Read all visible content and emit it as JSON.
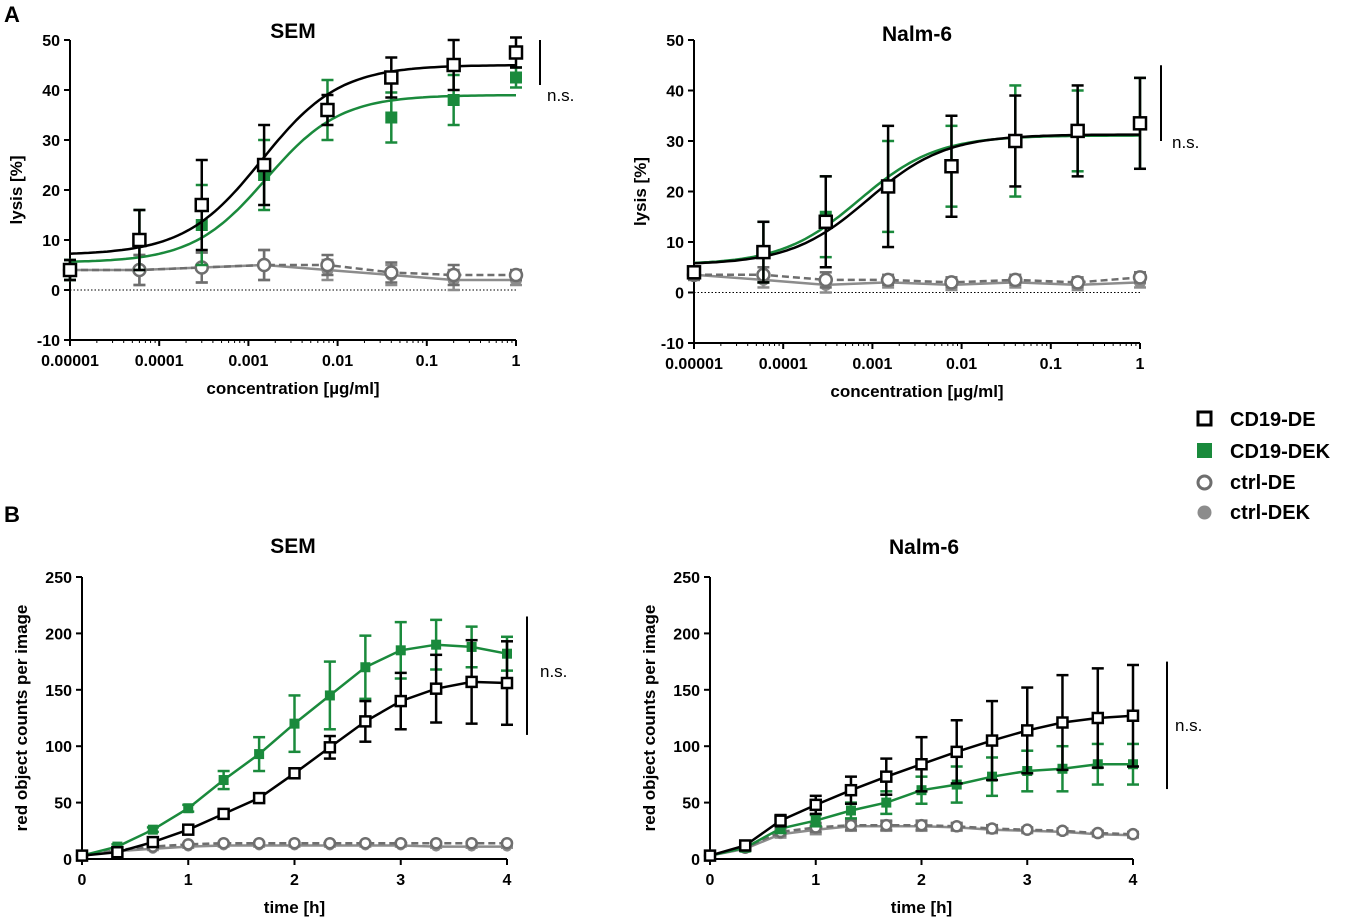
{
  "panel_labels": [
    "A",
    "B"
  ],
  "legend": [
    {
      "label": "CD19-DE",
      "marker": "open-square",
      "color": "#000000"
    },
    {
      "label": "CD19-DEK",
      "marker": "filled-square",
      "color": "#1a8a3c"
    },
    {
      "label": "ctrl-DE",
      "marker": "open-circle",
      "color": "#6e6e6e"
    },
    {
      "label": "ctrl-DEK",
      "marker": "filled-circle",
      "color": "#8c8c8c"
    }
  ],
  "colors": {
    "black": "#000000",
    "green": "#1a8a3c",
    "gray": "#6e6e6e",
    "lightgray": "#8c8c8c"
  },
  "chart_data": [
    {
      "id": "A1",
      "type": "scatter",
      "title": "SEM",
      "xlabel": "concentration [µg/ml]",
      "ylabel": "lysis [%]",
      "xscale": "log",
      "xlim": [
        1e-05,
        1
      ],
      "ylim": [
        -10,
        50
      ],
      "xticks": [
        1e-05,
        0.0001,
        0.001,
        0.01,
        0.1,
        1
      ],
      "xticklabels": [
        "0.00001",
        "0.0001",
        "0.001",
        "0.01",
        "0.1",
        "1"
      ],
      "yticks": [
        -10,
        0,
        10,
        20,
        30,
        40,
        50
      ],
      "annotation": "n.s.",
      "x": [
        1e-05,
        6e-05,
        0.0003,
        0.0015,
        0.0077,
        0.04,
        0.2,
        1
      ],
      "series": [
        {
          "name": "CD19-DE",
          "y": [
            4,
            10,
            17,
            25,
            36,
            42.5,
            45,
            47.5
          ],
          "err": [
            2,
            6,
            9,
            8,
            3,
            4,
            5,
            3
          ],
          "fit": {
            "bottom": 7,
            "top": 45,
            "logEC50": -2.85,
            "hill": 1
          }
        },
        {
          "name": "CD19-DEK",
          "y": [
            4,
            10,
            13,
            23,
            36,
            34.5,
            38,
            42.5
          ],
          "err": [
            2,
            6,
            8,
            7,
            6,
            5,
            5,
            2
          ],
          "fit": {
            "bottom": 5.5,
            "top": 39,
            "logEC50": -2.8,
            "hill": 1.05
          }
        },
        {
          "name": "ctrl-DE",
          "y": [
            4,
            4,
            4.5,
            5,
            5,
            3.5,
            3,
            3
          ],
          "err": [
            2,
            3,
            3,
            3,
            2,
            2,
            2,
            1
          ]
        },
        {
          "name": "ctrl-DEK",
          "y": [
            4,
            4,
            4.5,
            5,
            4,
            3,
            2,
            2
          ],
          "err": [
            2,
            3,
            3,
            3,
            2,
            2,
            2,
            1
          ]
        }
      ]
    },
    {
      "id": "A2",
      "type": "scatter",
      "title": "Nalm-6",
      "xlabel": "concentration [µg/ml]",
      "ylabel": "lysis [%]",
      "xscale": "log",
      "xlim": [
        1e-05,
        1
      ],
      "ylim": [
        -10,
        50
      ],
      "xticks": [
        1e-05,
        0.0001,
        0.001,
        0.01,
        0.1,
        1
      ],
      "xticklabels": [
        "0.00001",
        "0.0001",
        "0.001",
        "0.01",
        "0.1",
        "1"
      ],
      "yticks": [
        -10,
        0,
        10,
        20,
        30,
        40,
        50
      ],
      "annotation": "n.s.",
      "x": [
        1e-05,
        6e-05,
        0.0003,
        0.0015,
        0.0077,
        0.04,
        0.2,
        1
      ],
      "series": [
        {
          "name": "CD19-DE",
          "y": [
            4,
            8,
            14,
            21,
            25,
            30,
            32,
            33.5
          ],
          "err": [
            1,
            6,
            9,
            12,
            10,
            9,
            9,
            9
          ],
          "fit": {
            "bottom": 5.5,
            "top": 31.3,
            "logEC50": -3.05,
            "hill": 1
          }
        },
        {
          "name": "CD19-DEK",
          "y": [
            4,
            8,
            15,
            21,
            25,
            30,
            32,
            33.5
          ],
          "err": [
            1,
            6,
            8,
            9,
            8,
            11,
            8,
            9
          ],
          "fit": {
            "bottom": 5.5,
            "top": 31.1,
            "logEC50": -3.15,
            "hill": 1
          }
        },
        {
          "name": "ctrl-DE",
          "y": [
            3.5,
            3.5,
            2.5,
            2.5,
            2,
            2.5,
            2,
            3
          ],
          "err": [
            1,
            1.5,
            1.5,
            1,
            1,
            1,
            1,
            1
          ]
        },
        {
          "name": "ctrl-DEK",
          "y": [
            3.5,
            2.5,
            1.5,
            2,
            1.5,
            2,
            1.5,
            2
          ],
          "err": [
            1,
            1.5,
            1.5,
            1,
            1,
            1,
            1,
            1
          ]
        }
      ]
    },
    {
      "id": "B1",
      "type": "line",
      "title": "SEM",
      "xlabel": "time [h]",
      "ylabel": "red object counts per image",
      "xlim": [
        0,
        4
      ],
      "ylim": [
        0,
        250
      ],
      "xticks": [
        0,
        1,
        2,
        3,
        4
      ],
      "yticks": [
        0,
        50,
        100,
        150,
        200,
        250
      ],
      "annotation": "n.s.",
      "x": [
        0,
        0.333,
        0.667,
        1,
        1.333,
        1.667,
        2,
        2.333,
        2.667,
        3,
        3.333,
        3.667,
        4
      ],
      "series": [
        {
          "name": "CD19-DE",
          "y": [
            3,
            6,
            15,
            26,
            40,
            54,
            76,
            99,
            122,
            140,
            151,
            157,
            156
          ],
          "err": [
            1,
            2,
            2,
            2,
            3,
            3,
            4,
            10,
            18,
            25,
            30,
            37,
            37
          ]
        },
        {
          "name": "CD19-DEK",
          "y": [
            3,
            11,
            26,
            45,
            70,
            93,
            120,
            145,
            170,
            185,
            190,
            188,
            182
          ],
          "err": [
            1,
            2,
            2,
            3,
            8,
            15,
            25,
            30,
            28,
            25,
            22,
            18,
            15
          ]
        },
        {
          "name": "ctrl-DE",
          "y": [
            3,
            8,
            11,
            13,
            14,
            14,
            14,
            14,
            14,
            14,
            14,
            14,
            14
          ],
          "err": [
            1,
            1,
            1,
            1,
            1,
            1,
            1,
            1,
            1,
            1,
            1,
            1,
            1
          ]
        },
        {
          "name": "ctrl-DEK",
          "y": [
            3,
            7,
            9,
            11,
            12,
            12,
            12,
            12,
            12,
            12,
            11,
            11,
            11
          ],
          "err": [
            1,
            1,
            1,
            1,
            1,
            1,
            1,
            1,
            1,
            1,
            1,
            1,
            1
          ]
        }
      ]
    },
    {
      "id": "B2",
      "type": "line",
      "title": "Nalm-6",
      "xlabel": "time [h]",
      "ylabel": "red object counts per image",
      "xlim": [
        0,
        4
      ],
      "ylim": [
        0,
        250
      ],
      "xticks": [
        0,
        1,
        2,
        3,
        4
      ],
      "yticks": [
        0,
        50,
        100,
        150,
        200,
        250
      ],
      "annotation": "n.s.",
      "x": [
        0,
        0.333,
        0.667,
        1,
        1.333,
        1.667,
        2,
        2.333,
        2.667,
        3,
        3.333,
        3.667,
        4
      ],
      "series": [
        {
          "name": "CD19-DE",
          "y": [
            3,
            12,
            34,
            48,
            61,
            73,
            84,
            95,
            105,
            114,
            121,
            125,
            127
          ],
          "err": [
            2,
            3,
            5,
            8,
            12,
            16,
            24,
            28,
            35,
            38,
            42,
            44,
            45
          ]
        },
        {
          "name": "CD19-DEK",
          "y": [
            3,
            10,
            27,
            34,
            43,
            50,
            61,
            66,
            73,
            78,
            80,
            84,
            84
          ],
          "err": [
            1,
            3,
            4,
            5,
            7,
            10,
            12,
            16,
            17,
            18,
            20,
            18,
            18
          ]
        },
        {
          "name": "ctrl-DE",
          "y": [
            3,
            10,
            24,
            28,
            30,
            30,
            30,
            29,
            27,
            26,
            25,
            23,
            22
          ],
          "err": [
            1,
            2,
            3,
            4,
            4,
            4,
            4,
            3,
            3,
            2,
            2,
            2,
            2
          ]
        },
        {
          "name": "ctrl-DEK",
          "y": [
            3,
            9,
            22,
            26,
            29,
            29,
            29,
            28,
            26,
            25,
            24,
            22,
            21
          ],
          "err": [
            1,
            2,
            3,
            4,
            4,
            4,
            4,
            3,
            3,
            2,
            2,
            2,
            2
          ]
        }
      ]
    }
  ]
}
